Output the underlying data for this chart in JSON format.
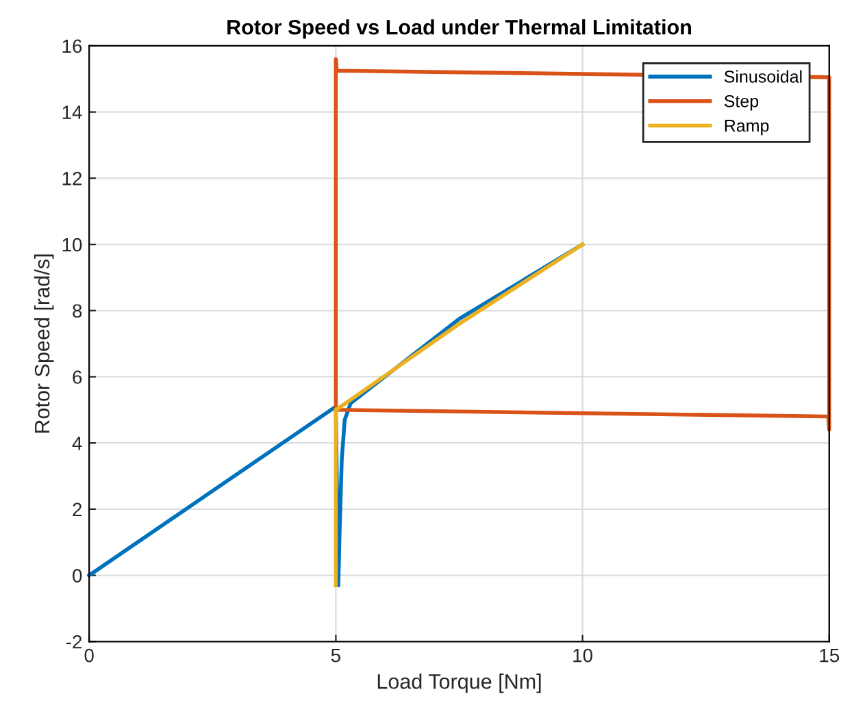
{
  "chart_data": {
    "type": "line",
    "title": "Rotor Speed vs Load under Thermal Limitation",
    "xlabel": "Load Torque [Nm]",
    "ylabel": "Rotor Speed [rad/s]",
    "xlim": [
      0,
      15
    ],
    "ylim": [
      -2,
      16
    ],
    "xticks": [
      0,
      5,
      10,
      15
    ],
    "yticks": [
      -2,
      0,
      2,
      4,
      6,
      8,
      10,
      12,
      14,
      16
    ],
    "grid": true,
    "legend": "top right",
    "line_style": "solid",
    "marker": "none",
    "series": [
      {
        "name": "Sinusoidal",
        "color": "#0072bd",
        "x": [
          0,
          2.5,
          5,
          5.05,
          5.08,
          5.12,
          5.18,
          5.3,
          7.5,
          10
        ],
        "values": [
          0,
          2.55,
          5.1,
          -0.3,
          1.5,
          3.5,
          4.7,
          5.2,
          7.75,
          10
        ]
      },
      {
        "name": "Step",
        "color": "#d95319",
        "x": [
          5,
          5,
          5.02,
          15,
          15,
          14.98,
          5.02
        ],
        "values": [
          5.0,
          15.6,
          15.25,
          15.05,
          4.4,
          4.8,
          5.0
        ]
      },
      {
        "name": "Ramp",
        "color": "#edb120",
        "x": [
          5,
          5,
          5.2,
          7.5,
          10
        ],
        "values": [
          -0.3,
          5.0,
          5.2,
          7.6,
          10
        ]
      }
    ]
  }
}
